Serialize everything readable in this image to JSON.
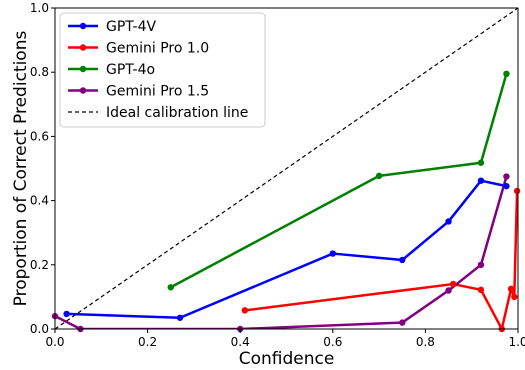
{
  "chart_data": {
    "type": "line",
    "xlabel": "Confidence",
    "ylabel": "Proportion of Correct Predictions",
    "xlim": [
      0,
      1
    ],
    "ylim": [
      0,
      1
    ],
    "xticks": [
      "0.0",
      "0.2",
      "0.4",
      "0.6",
      "0.8",
      "1.0"
    ],
    "yticks": [
      "0.0",
      "0.2",
      "0.4",
      "0.6",
      "0.8",
      "1.0"
    ],
    "grid": false,
    "legend_position": "top-left",
    "series": [
      {
        "name": "GPT-4V",
        "color": "#0000ff",
        "points": [
          [
            0.025,
            0.047
          ],
          [
            0.27,
            0.035
          ],
          [
            0.6,
            0.235
          ],
          [
            0.75,
            0.215
          ],
          [
            0.85,
            0.335
          ],
          [
            0.92,
            0.462
          ],
          [
            0.975,
            0.445
          ]
        ]
      },
      {
        "name": "Gemini Pro 1.0",
        "color": "#ff0000",
        "points": [
          [
            0.41,
            0.058
          ],
          [
            0.86,
            0.14
          ],
          [
            0.92,
            0.122
          ],
          [
            0.965,
            0.0
          ],
          [
            0.985,
            0.125
          ],
          [
            0.992,
            0.1
          ],
          [
            0.998,
            0.43
          ]
        ]
      },
      {
        "name": "GPT-4o",
        "color": "#008000",
        "points": [
          [
            0.25,
            0.13
          ],
          [
            0.7,
            0.477
          ],
          [
            0.92,
            0.518
          ],
          [
            0.975,
            0.795
          ]
        ]
      },
      {
        "name": "Gemini Pro 1.5",
        "color": "#800080",
        "points": [
          [
            0.0,
            0.04
          ],
          [
            0.055,
            0.0
          ],
          [
            0.4,
            0.0
          ],
          [
            0.75,
            0.02
          ],
          [
            0.85,
            0.12
          ],
          [
            0.92,
            0.2
          ],
          [
            0.975,
            0.475
          ]
        ]
      }
    ],
    "reference_line": {
      "name": "Ideal calibration line",
      "color": "#000000",
      "style": "dashed",
      "points": [
        [
          0,
          0
        ],
        [
          1,
          1
        ]
      ]
    }
  }
}
